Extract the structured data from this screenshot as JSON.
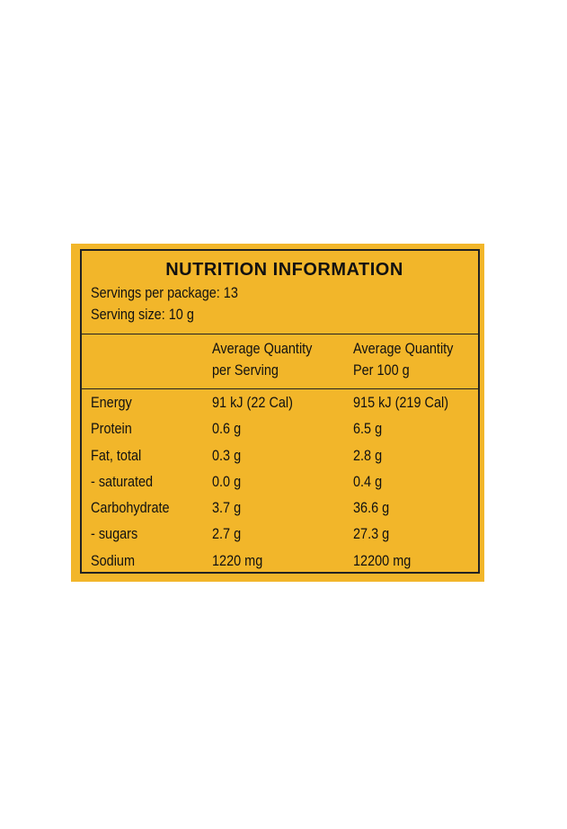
{
  "header": {
    "title": "NUTRITION INFORMATION",
    "servings": "Servings per package: 13",
    "serving_size": "Serving size: 10 g"
  },
  "table": {
    "columns": [
      "Average Quantity\nper Serving",
      "Average Quantity\nPer 100 g"
    ],
    "rows": [
      [
        "Energy",
        "91 kJ (22 Cal)",
        "915 kJ (219 Cal)"
      ],
      [
        "Protein",
        "0.6 g",
        "6.5 g"
      ],
      [
        "Fat,  total",
        "0.3 g",
        "2.8 g"
      ],
      [
        "- saturated",
        "0.0 g",
        "0.4 g"
      ],
      [
        "Carbohydrate",
        "3.7 g",
        "36.6 g"
      ],
      [
        "- sugars",
        "2.7 g",
        "27.3 g"
      ],
      [
        "Sodium",
        "1220 mg",
        "12200 mg"
      ]
    ]
  }
}
